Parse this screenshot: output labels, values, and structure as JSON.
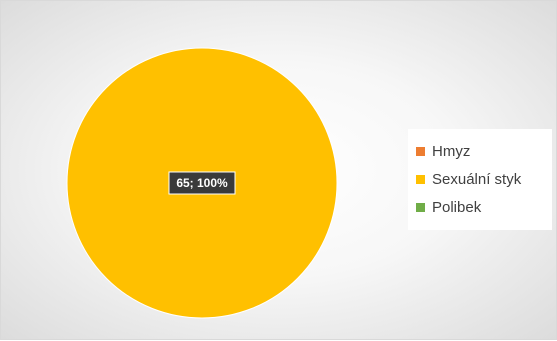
{
  "chart_data": {
    "type": "pie",
    "categories": [
      "Hmyz",
      "Sexuální styk",
      "Polibek"
    ],
    "values": [
      0,
      65,
      0
    ],
    "colors": [
      "#ED7D31",
      "#FFC000",
      "#70AD47"
    ],
    "data_labels": [
      "",
      "65; 100%",
      ""
    ],
    "legend_position": "right"
  },
  "legend": {
    "items": [
      {
        "label": "Hmyz",
        "color": "#ED7D31"
      },
      {
        "label": "Sexuální styk",
        "color": "#FFC000"
      },
      {
        "label": "Polibek",
        "color": "#70AD47"
      }
    ]
  }
}
